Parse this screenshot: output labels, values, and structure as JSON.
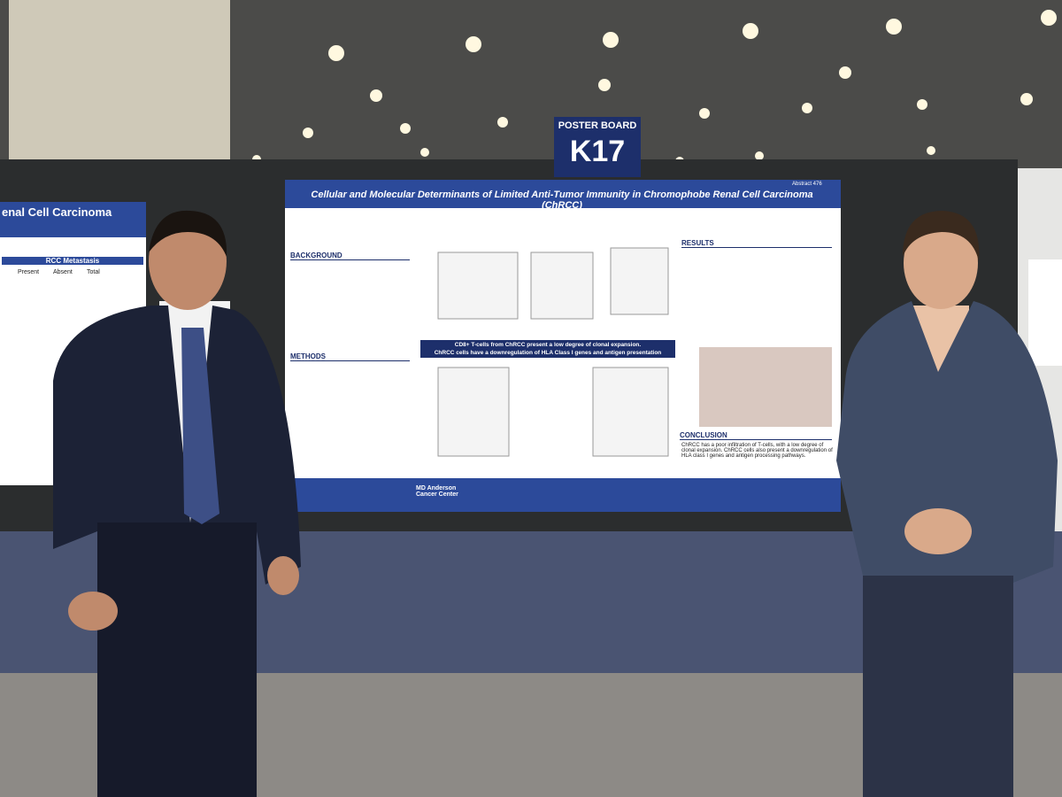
{
  "sign": {
    "line1": "POSTER BOARD",
    "line2": "K17"
  },
  "poster": {
    "abstract": "Abstract 476",
    "title": "Cellular and Molecular Determinants of Limited Anti-Tumor Immunity in Chromophobe Renal Cell Carcinoma (ChRCC)",
    "sections": [
      "BACKGROUND",
      "METHODS",
      "RESULTS",
      "CONCLUSION"
    ],
    "banner": [
      "CD8+ T-cells from ChRCC present a low degree of clonal expansion.",
      "ChRCC cells have a downregulation of HLA Class I genes and antigen presentation pathways."
    ],
    "conclusion": "ChRCC has a poor infiltration of T-cells, with a low degree of clonal expansion. ChRCC cells also present a downregulation of HLA class I genes and antigen processing pathways.",
    "logo": "MD Anderson Cancer Center"
  },
  "left_poster": {
    "title": "enal Cell Carcinoma",
    "table_title": "RCC Metastasis",
    "headers": [
      "Present",
      "Absent",
      "Total"
    ]
  }
}
